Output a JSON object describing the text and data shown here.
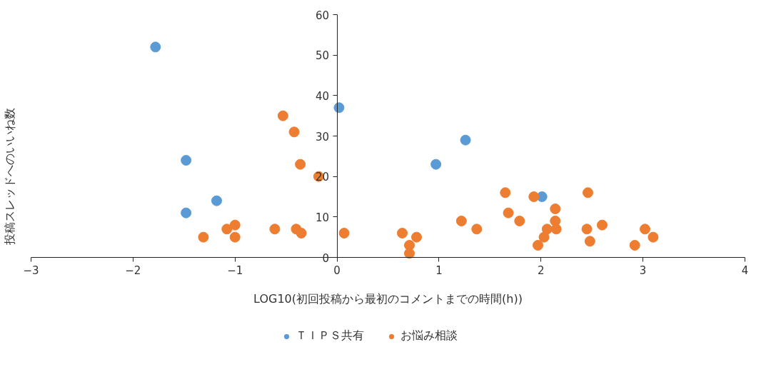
{
  "chart_data": {
    "type": "scatter",
    "xlabel": "LOG10(初回投稿から最初のコメントまでの時間(h))",
    "ylabel": "投稿スレッドへのいいね数",
    "xlim": [
      -3,
      4
    ],
    "xticks": [
      -3,
      -2,
      -1,
      0,
      1,
      2,
      3,
      4
    ],
    "ylim": [
      0,
      60
    ],
    "yticks": [
      0,
      10,
      20,
      30,
      40,
      50,
      60
    ],
    "grid": false,
    "legend": "bottom",
    "marker": "circle",
    "series": [
      {
        "name": "ＴＩＰＳ共有",
        "color": "#5b9bd5",
        "x": [
          -1.78,
          -1.48,
          -1.48,
          -1.18,
          0.02,
          0.97,
          1.26,
          2.01
        ],
        "values": [
          52,
          24,
          11,
          14,
          37,
          23,
          29,
          15
        ]
      },
      {
        "name": "お悩み相談",
        "color": "#ed7d31",
        "x": [
          -1.31,
          -1.08,
          -1.0,
          -1.0,
          -0.61,
          -0.53,
          -0.42,
          -0.4,
          -0.36,
          -0.35,
          -0.18,
          0.07,
          0.64,
          0.71,
          0.71,
          0.78,
          1.22,
          1.37,
          1.65,
          1.68,
          1.79,
          1.93,
          1.97,
          2.03,
          2.06,
          2.14,
          2.14,
          2.15,
          2.46,
          2.45,
          2.48,
          2.6,
          2.92,
          3.02,
          3.1
        ],
        "values": [
          5,
          7,
          8,
          5,
          7,
          35,
          31,
          7,
          23,
          6,
          20,
          6,
          6,
          3,
          1,
          5,
          9,
          7,
          16,
          11,
          9,
          15,
          3,
          5,
          7,
          12,
          9,
          7,
          16,
          7,
          4,
          8,
          3,
          7,
          5
        ]
      }
    ]
  }
}
